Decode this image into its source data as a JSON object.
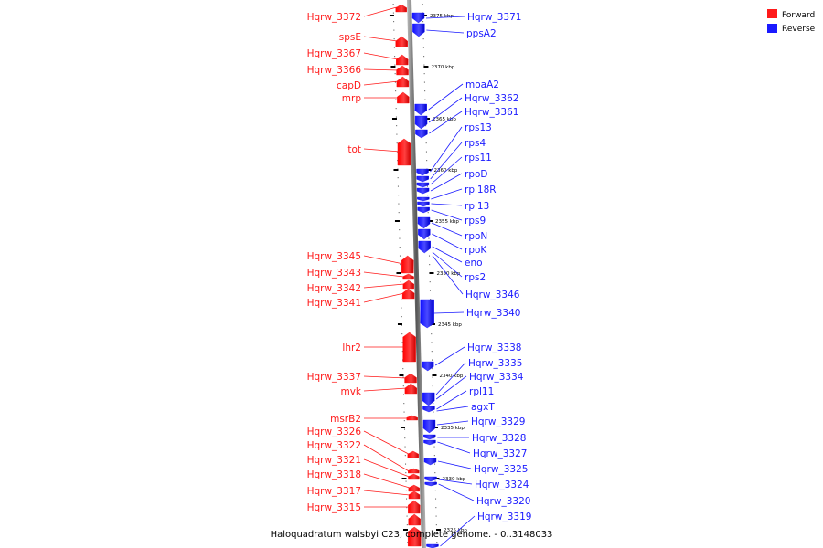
{
  "legend": [
    {
      "label": "Forward",
      "color": "#ff1a1a"
    },
    {
      "label": "Reverse",
      "color": "#1a1aff"
    }
  ],
  "caption": "Haloquadratum walsbyi C23, complete genome. - 0..3148033",
  "axis_ticks": [
    "2375 kbp",
    "2370 kbp",
    "2365 kbp",
    "2360 kbp",
    "2355 kbp",
    "2350 kbp",
    "2345 kbp",
    "2340 kbp",
    "2335 kbp",
    "2330 kbp",
    "2325 kbp"
  ],
  "forward_genes": [
    "Hqrw_3372",
    "spsE",
    "Hqrw_3367",
    "Hqrw_3366",
    "capD",
    "mrp",
    "tot",
    "Hqrw_3345",
    "Hqrw_3343",
    "Hqrw_3342",
    "Hqrw_3341",
    "lhr2",
    "Hqrw_3337",
    "mvk",
    "msrB2",
    "Hqrw_3326",
    "Hqrw_3322",
    "Hqrw_3321",
    "Hqrw_3318",
    "Hqrw_3317",
    "Hqrw_3315"
  ],
  "reverse_genes": [
    "Hqrw_3371",
    "ppsA2",
    "moaA2",
    "Hqrw_3362",
    "Hqrw_3361",
    "rps13",
    "rps4",
    "rps11",
    "rpoD",
    "rpl18R",
    "rpl13",
    "rps9",
    "rpoN",
    "rpoK",
    "eno",
    "rps2",
    "Hqrw_3346",
    "Hqrw_3340",
    "Hqrw_3338",
    "Hqrw_3335",
    "Hqrw_3334",
    "rpl11",
    "agxT",
    "Hqrw_3329",
    "Hqrw_3328",
    "Hqrw_3327",
    "Hqrw_3325",
    "Hqrw_3324",
    "Hqrw_3320",
    "Hqrw_3319"
  ]
}
